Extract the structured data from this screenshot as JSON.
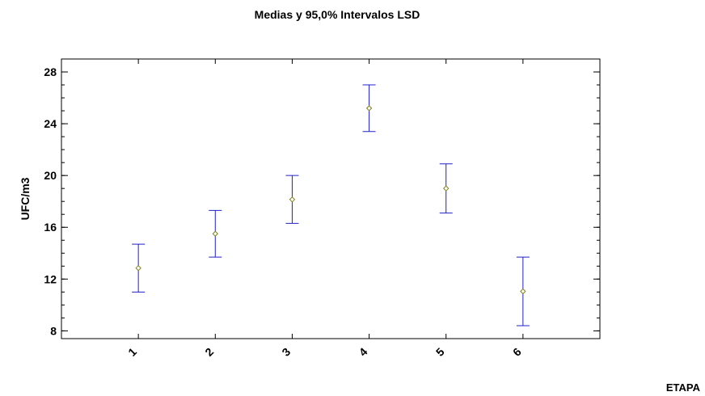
{
  "chart_data": {
    "type": "scatter",
    "title": "Medias y 95,0% Intervalos LSD",
    "xlabel": "ETAPA",
    "ylabel": "UFC/m3",
    "categories": [
      "1",
      "2",
      "3",
      "4",
      "5",
      "6"
    ],
    "means": [
      12.85,
      15.5,
      18.15,
      25.2,
      19.0,
      11.05
    ],
    "lower": [
      11.0,
      13.7,
      16.3,
      23.4,
      17.1,
      8.4
    ],
    "upper": [
      14.7,
      17.3,
      20.0,
      27.0,
      20.9,
      13.7
    ],
    "ylim": [
      7.4,
      29.0
    ],
    "yticks": [
      8,
      12,
      16,
      20,
      24,
      28
    ],
    "yminor_step": 1,
    "x_range": [
      0,
      7
    ],
    "grid": false,
    "colors": {
      "interval": "#2020c8",
      "marker": "#808020",
      "axes": "#000000"
    }
  }
}
